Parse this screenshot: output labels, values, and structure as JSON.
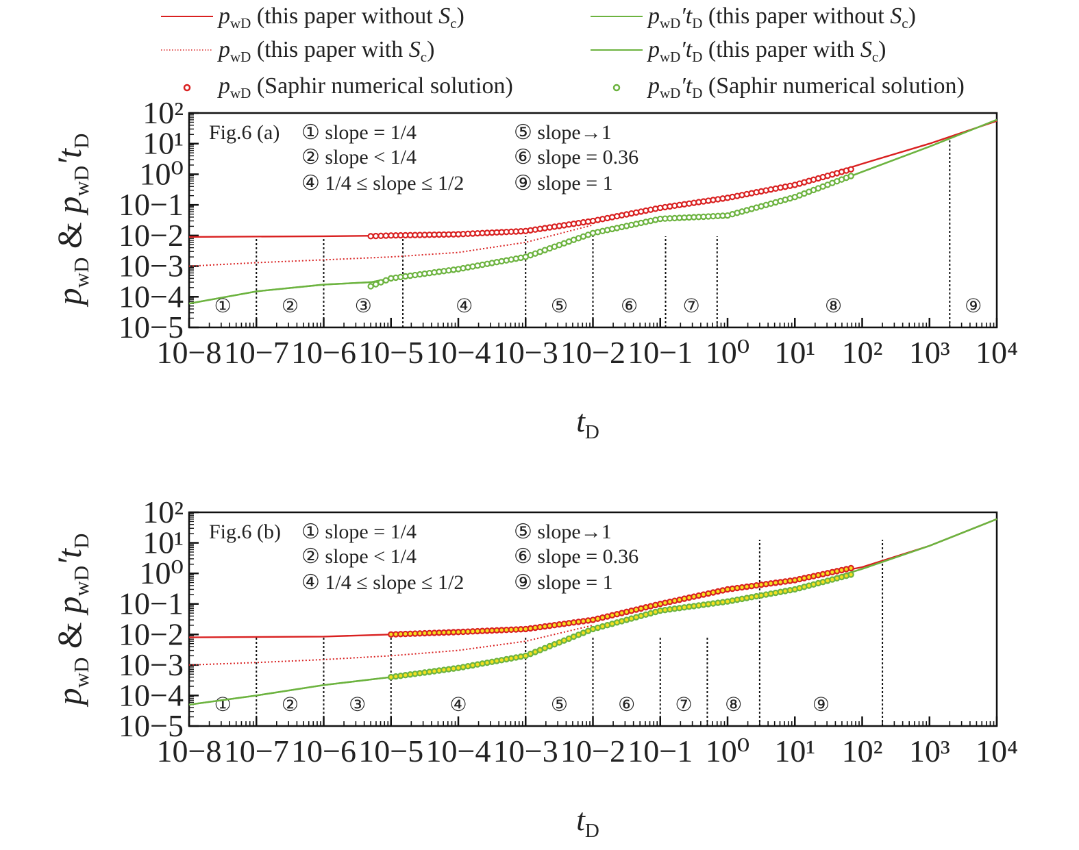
{
  "legend": {
    "items": [
      {
        "math": [
          [
            "p",
            "i"
          ],
          [
            "wD",
            "sub"
          ]
        ],
        "text": " (this paper without ",
        "tail": [
          [
            "S",
            "i"
          ],
          [
            "c",
            "sub"
          ],
          [
            ")",
            ""
          ]
        ],
        "color": "#d92020",
        "style": "solid"
      },
      {
        "math": [
          [
            "p",
            "i"
          ],
          [
            "wD",
            "sub"
          ]
        ],
        "text": " (this paper with ",
        "tail": [
          [
            "S",
            "i"
          ],
          [
            "c",
            "sub"
          ],
          [
            ")",
            ""
          ]
        ],
        "color": "#d92020",
        "style": "dotted"
      },
      {
        "math": [
          [
            "p",
            "i"
          ],
          [
            "wD",
            "sub"
          ]
        ],
        "text": " (Saphir numerical solution)",
        "tail": [],
        "color": "#d92020",
        "style": "marker"
      },
      {
        "math": [
          [
            "p",
            "i"
          ],
          [
            "wD",
            "sub"
          ],
          [
            "′",
            "i"
          ],
          [
            "t",
            "i"
          ],
          [
            "D",
            "sub"
          ]
        ],
        "text": " (this paper without ",
        "tail": [
          [
            "S",
            "i"
          ],
          [
            "c",
            "sub"
          ],
          [
            ")",
            ""
          ]
        ],
        "color": "#6cb33f",
        "style": "solid"
      },
      {
        "math": [
          [
            "p",
            "i"
          ],
          [
            "wD",
            "sub"
          ],
          [
            "′",
            "i"
          ],
          [
            "t",
            "i"
          ],
          [
            "D",
            "sub"
          ]
        ],
        "text": " (this paper with ",
        "tail": [
          [
            "S",
            "i"
          ],
          [
            "c",
            "sub"
          ],
          [
            ")",
            ""
          ]
        ],
        "color": "#6cb33f",
        "style": "solid"
      },
      {
        "math": [
          [
            "p",
            "i"
          ],
          [
            "wD",
            "sub"
          ],
          [
            "′",
            "i"
          ],
          [
            "t",
            "i"
          ],
          [
            "D",
            "sub"
          ]
        ],
        "text": " (Saphir numerical solution)",
        "tail": [],
        "color": "#6cb33f",
        "style": "marker"
      }
    ]
  },
  "colors": {
    "pressure": "#d92020",
    "derivative": "#6cb33f",
    "marker_fill_a": "#ffffff",
    "marker_fill_b": "#f3e020"
  },
  "chart_data": [
    {
      "type": "line",
      "panel_label": "Fig.6 (a)",
      "xlabel": "t_D",
      "ylabel": "p_wD & p_wD' t_D",
      "xscale": "log",
      "yscale": "log",
      "xlim": [
        1e-08,
        10000.0
      ],
      "ylim": [
        1e-05,
        100
      ],
      "x_tick_labels": [
        "10−8",
        "10−7",
        "10−6",
        "10−5",
        "10−4",
        "10−3",
        "10−2",
        "10−1",
        "10⁰",
        "10¹",
        "10²",
        "10³",
        "10⁴"
      ],
      "y_tick_labels": [
        "10−5",
        "10−4",
        "10−3",
        "10−2",
        "10−1",
        "10⁰",
        "10¹",
        "10²"
      ],
      "annotations": [
        "①  slope = 1/4",
        "②  slope < 1/4",
        "④  1/4 ≤ slope ≤ 1/2",
        "⑤ slope→1",
        "⑥ slope = 0.36",
        "⑨ slope = 1"
      ],
      "regions": [
        "①",
        "②",
        "③",
        "④",
        "⑤",
        "⑥",
        "⑦",
        "⑧",
        "⑨"
      ],
      "region_boundaries": [
        1e-07,
        1e-06,
        1.5e-05,
        0.001,
        0.01,
        0.12,
        0.7,
        2000
      ],
      "series": [
        {
          "name": "pwD (this paper without Sc)",
          "style": "solid",
          "color": "#d92020",
          "x": [
            1e-08,
            1e-06,
            1e-05,
            0.0001,
            0.001,
            0.01,
            0.1,
            1,
            10,
            100,
            1000,
            10000
          ],
          "y": [
            0.009,
            0.0095,
            0.01,
            0.011,
            0.014,
            0.03,
            0.08,
            0.17,
            0.45,
            2.2,
            10,
            55
          ]
        },
        {
          "name": "pwD (this paper with Sc)",
          "style": "dotted",
          "color": "#d92020",
          "x": [
            1e-08,
            1e-07,
            1e-06,
            1e-05,
            0.0001,
            0.001,
            0.01
          ],
          "y": [
            0.001,
            0.0013,
            0.0016,
            0.002,
            0.0028,
            0.006,
            0.022
          ]
        },
        {
          "name": "pwD (Saphir numerical solution)",
          "style": "marker",
          "color": "#d92020",
          "fill": "#ffffff",
          "x": [
            5e-06,
            1e-05,
            0.0001,
            0.001,
            0.01,
            0.1,
            1,
            10,
            80
          ],
          "y": [
            0.0095,
            0.01,
            0.011,
            0.014,
            0.03,
            0.08,
            0.17,
            0.45,
            1.6
          ]
        },
        {
          "name": "pwD't_D (this paper without Sc)",
          "style": "solid",
          "color": "#6cb33f",
          "x": [
            1e-08,
            1e-07,
            1e-06,
            5e-06,
            1e-05,
            0.0001,
            0.001,
            0.01,
            0.1,
            1,
            10,
            100,
            1000,
            10000
          ],
          "y": [
            6e-05,
            0.00015,
            0.00025,
            0.0003,
            0.0004,
            0.0008,
            0.002,
            0.012,
            0.035,
            0.045,
            0.18,
            1.2,
            8,
            60
          ]
        },
        {
          "name": "pwD't_D (this paper with Sc)",
          "style": "solid",
          "color": "#6cb33f",
          "x": [
            1e-08,
            1e-07,
            1e-06,
            5e-06,
            1e-05,
            0.0001,
            0.001,
            0.01,
            0.1,
            1,
            10,
            100,
            1000,
            10000
          ],
          "y": [
            6e-05,
            0.00015,
            0.00025,
            0.0003,
            0.0004,
            0.0008,
            0.002,
            0.012,
            0.035,
            0.045,
            0.18,
            1.2,
            8,
            60
          ]
        },
        {
          "name": "pwD't_D (Saphir numerical solution)",
          "style": "marker",
          "color": "#6cb33f",
          "fill": "#ffffff",
          "x": [
            5e-06,
            1e-05,
            0.0001,
            0.001,
            0.01,
            0.1,
            1,
            10,
            80
          ],
          "y": [
            0.00022,
            0.0004,
            0.0008,
            0.002,
            0.012,
            0.035,
            0.045,
            0.18,
            1.0
          ]
        }
      ]
    },
    {
      "type": "line",
      "panel_label": "Fig.6 (b)",
      "xlabel": "t_D",
      "ylabel": "p_wD & p_wD' t_D",
      "xscale": "log",
      "yscale": "log",
      "xlim": [
        1e-08,
        10000.0
      ],
      "ylim": [
        1e-05,
        100
      ],
      "x_tick_labels": [
        "10−8",
        "10−7",
        "10−6",
        "10−5",
        "10−4",
        "10−3",
        "10−2",
        "10−1",
        "10⁰",
        "10¹",
        "10²",
        "10³",
        "10⁴"
      ],
      "y_tick_labels": [
        "10−5",
        "10−4",
        "10−3",
        "10−2",
        "10−1",
        "10⁰",
        "10¹",
        "10²"
      ],
      "annotations": [
        "①  slope = 1/4",
        "②  slope < 1/4",
        "④  1/4 ≤ slope ≤ 1/2",
        "⑤ slope→1",
        "⑥ slope = 0.36",
        "⑨ slope = 1"
      ],
      "regions": [
        "①",
        "②",
        "③",
        "④",
        "⑤",
        "⑥",
        "⑦",
        "⑧",
        "⑨"
      ],
      "region_boundaries": [
        1e-07,
        1e-06,
        1e-05,
        0.001,
        0.01,
        0.1,
        0.5,
        3,
        200
      ],
      "series": [
        {
          "name": "pwD (this paper without Sc)",
          "style": "solid",
          "color": "#d92020",
          "x": [
            1e-08,
            1e-06,
            1e-05,
            0.0001,
            0.001,
            0.01,
            0.1,
            1,
            10,
            100,
            1000,
            10000
          ],
          "y": [
            0.008,
            0.0085,
            0.01,
            0.012,
            0.015,
            0.03,
            0.1,
            0.3,
            0.6,
            1.6,
            8,
            60
          ]
        },
        {
          "name": "pwD (this paper with Sc)",
          "style": "dotted",
          "color": "#d92020",
          "x": [
            1e-08,
            1e-07,
            1e-06,
            1e-05,
            0.0001,
            0.001,
            0.01
          ],
          "y": [
            0.001,
            0.0012,
            0.0015,
            0.002,
            0.003,
            0.006,
            0.02
          ]
        },
        {
          "name": "pwD (Saphir numerical solution)",
          "style": "marker",
          "color": "#d92020",
          "fill": "#f3e020",
          "x": [
            1e-05,
            0.0001,
            0.001,
            0.01,
            0.1,
            1,
            10,
            80
          ],
          "y": [
            0.01,
            0.012,
            0.015,
            0.03,
            0.1,
            0.3,
            0.6,
            1.6
          ]
        },
        {
          "name": "pwD't_D (this paper without Sc)",
          "style": "solid",
          "color": "#6cb33f",
          "x": [
            1e-08,
            1e-07,
            1e-06,
            1e-05,
            0.0001,
            0.001,
            0.01,
            0.1,
            1,
            10,
            100,
            1000,
            10000
          ],
          "y": [
            5e-05,
            0.0001,
            0.00022,
            0.0004,
            0.0008,
            0.002,
            0.015,
            0.06,
            0.12,
            0.3,
            1.4,
            8,
            60
          ]
        },
        {
          "name": "pwD't_D (this paper with Sc)",
          "style": "solid",
          "color": "#6cb33f",
          "x": [
            1e-08,
            1e-07,
            1e-06,
            1e-05,
            0.0001,
            0.001,
            0.01,
            0.1,
            1,
            10,
            100,
            1000,
            10000
          ],
          "y": [
            5e-05,
            0.0001,
            0.00022,
            0.0004,
            0.0008,
            0.002,
            0.015,
            0.06,
            0.12,
            0.3,
            1.4,
            8,
            60
          ]
        },
        {
          "name": "pwD't_D (Saphir numerical solution)",
          "style": "marker",
          "color": "#6cb33f",
          "fill": "#f3e020",
          "x": [
            1e-05,
            0.0001,
            0.001,
            0.01,
            0.1,
            1,
            10,
            80
          ],
          "y": [
            0.0004,
            0.0008,
            0.002,
            0.015,
            0.06,
            0.12,
            0.3,
            1.0
          ]
        }
      ]
    }
  ]
}
